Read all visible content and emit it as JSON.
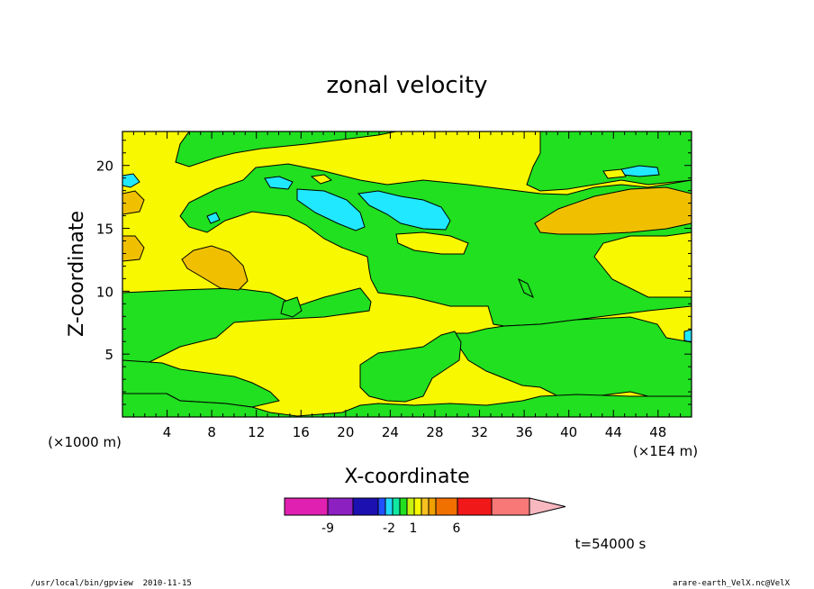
{
  "chart_data": {
    "type": "heatmap",
    "title": "zonal velocity",
    "xlabel": "X-coordinate",
    "ylabel": "Z-coordinate",
    "x_unit": "(×1E4 m)",
    "y_unit": "(×1000 m)",
    "x_ticks": [
      4,
      8,
      12,
      16,
      20,
      24,
      28,
      32,
      36,
      40,
      44,
      48
    ],
    "y_ticks": [
      5,
      10,
      15,
      20
    ],
    "xlim": [
      0,
      51
    ],
    "ylim": [
      0,
      22.7
    ],
    "colorbar": {
      "colors": [
        "#e020b0",
        "#8c20c0",
        "#1c10b0",
        "#2050ff",
        "#20d8ff",
        "#10e8a0",
        "#20e020",
        "#c8f010",
        "#f8f800",
        "#f8c020",
        "#f0a000",
        "#f07000",
        "#f01818",
        "#f87878",
        "#f8b8c0"
      ],
      "tick_labels": [
        "-9",
        "-2",
        "1",
        "6"
      ]
    },
    "time_label": "t=54000 s",
    "footer_left": "/usr/local/bin/gpview  2010-11-15",
    "footer_right": "arare-earth_VelX.nc@VelX"
  }
}
